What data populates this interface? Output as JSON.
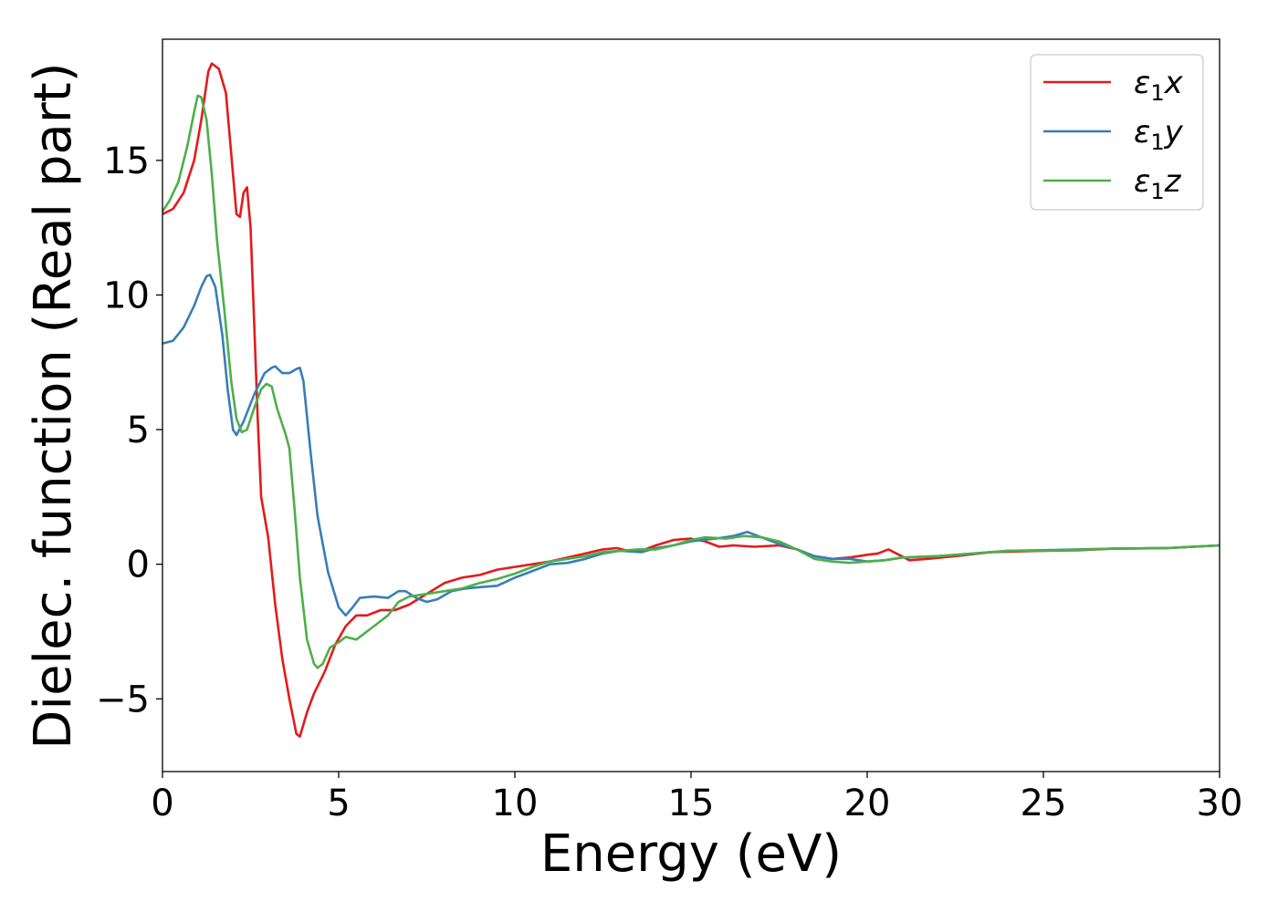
{
  "chart_data": {
    "type": "line",
    "title": "",
    "xlabel": "Energy (eV)",
    "ylabel": "Dielec. function (Real part)",
    "xlim": [
      0,
      30
    ],
    "ylim": [
      -7.7,
      19.5
    ],
    "xticks": [
      0,
      5,
      10,
      15,
      20,
      25,
      30
    ],
    "xtick_labels": [
      "0",
      "5",
      "10",
      "15",
      "20",
      "25",
      "30"
    ],
    "yticks": [
      -5,
      0,
      5,
      10,
      15
    ],
    "ytick_labels": [
      "−5",
      "0",
      "5",
      "10",
      "15"
    ],
    "grid": false,
    "legend_position": "top-right",
    "series": [
      {
        "name_base": "ε",
        "name_sub": "1",
        "name_suffix": "x",
        "color": "#e41a1c",
        "points": [
          [
            0,
            13.0
          ],
          [
            0.3,
            13.2
          ],
          [
            0.6,
            13.8
          ],
          [
            0.9,
            15.0
          ],
          [
            1.1,
            16.5
          ],
          [
            1.3,
            18.3
          ],
          [
            1.4,
            18.6
          ],
          [
            1.6,
            18.4
          ],
          [
            1.8,
            17.5
          ],
          [
            2.0,
            14.5
          ],
          [
            2.1,
            13.0
          ],
          [
            2.2,
            12.9
          ],
          [
            2.3,
            13.8
          ],
          [
            2.4,
            14.0
          ],
          [
            2.5,
            12.5
          ],
          [
            2.6,
            9.0
          ],
          [
            2.7,
            5.5
          ],
          [
            2.8,
            2.5
          ],
          [
            3.0,
            1.0
          ],
          [
            3.2,
            -1.5
          ],
          [
            3.4,
            -3.5
          ],
          [
            3.6,
            -5.0
          ],
          [
            3.8,
            -6.3
          ],
          [
            3.9,
            -6.4
          ],
          [
            4.1,
            -5.5
          ],
          [
            4.3,
            -4.8
          ],
          [
            4.6,
            -4.0
          ],
          [
            4.9,
            -3.0
          ],
          [
            5.2,
            -2.3
          ],
          [
            5.5,
            -1.9
          ],
          [
            5.8,
            -1.9
          ],
          [
            6.2,
            -1.7
          ],
          [
            6.6,
            -1.7
          ],
          [
            7.0,
            -1.5
          ],
          [
            7.5,
            -1.1
          ],
          [
            8.0,
            -0.7
          ],
          [
            8.5,
            -0.5
          ],
          [
            9.0,
            -0.4
          ],
          [
            9.5,
            -0.2
          ],
          [
            10.0,
            -0.1
          ],
          [
            11.0,
            0.1
          ],
          [
            12.0,
            0.4
          ],
          [
            12.5,
            0.55
          ],
          [
            12.9,
            0.6
          ],
          [
            13.2,
            0.5
          ],
          [
            13.6,
            0.5
          ],
          [
            14.0,
            0.7
          ],
          [
            14.5,
            0.9
          ],
          [
            15.0,
            0.95
          ],
          [
            15.4,
            0.85
          ],
          [
            15.8,
            0.65
          ],
          [
            16.2,
            0.7
          ],
          [
            16.8,
            0.65
          ],
          [
            17.5,
            0.7
          ],
          [
            18.0,
            0.55
          ],
          [
            18.5,
            0.3
          ],
          [
            19.0,
            0.2
          ],
          [
            19.5,
            0.25
          ],
          [
            20.0,
            0.35
          ],
          [
            20.3,
            0.4
          ],
          [
            20.6,
            0.55
          ],
          [
            20.9,
            0.35
          ],
          [
            21.2,
            0.15
          ],
          [
            21.7,
            0.2
          ],
          [
            22.5,
            0.3
          ],
          [
            23.5,
            0.45
          ],
          [
            25.0,
            0.5
          ],
          [
            26.0,
            0.52
          ],
          [
            27.0,
            0.58
          ],
          [
            28.5,
            0.6
          ],
          [
            30.0,
            0.7
          ]
        ]
      },
      {
        "name_base": "ε",
        "name_sub": "1",
        "name_suffix": "y",
        "color": "#377eb8",
        "points": [
          [
            0,
            8.2
          ],
          [
            0.3,
            8.3
          ],
          [
            0.6,
            8.8
          ],
          [
            0.9,
            9.6
          ],
          [
            1.1,
            10.3
          ],
          [
            1.25,
            10.7
          ],
          [
            1.35,
            10.75
          ],
          [
            1.5,
            10.3
          ],
          [
            1.7,
            8.5
          ],
          [
            1.85,
            6.5
          ],
          [
            2.0,
            5.0
          ],
          [
            2.1,
            4.8
          ],
          [
            2.3,
            5.3
          ],
          [
            2.6,
            6.3
          ],
          [
            2.9,
            7.1
          ],
          [
            3.1,
            7.3
          ],
          [
            3.2,
            7.35
          ],
          [
            3.4,
            7.1
          ],
          [
            3.6,
            7.1
          ],
          [
            3.8,
            7.25
          ],
          [
            3.9,
            7.3
          ],
          [
            4.0,
            6.8
          ],
          [
            4.2,
            4.2
          ],
          [
            4.4,
            1.8
          ],
          [
            4.7,
            -0.3
          ],
          [
            5.0,
            -1.6
          ],
          [
            5.2,
            -1.9
          ],
          [
            5.4,
            -1.6
          ],
          [
            5.6,
            -1.25
          ],
          [
            6.0,
            -1.2
          ],
          [
            6.4,
            -1.25
          ],
          [
            6.7,
            -1.0
          ],
          [
            6.9,
            -1.0
          ],
          [
            7.2,
            -1.25
          ],
          [
            7.5,
            -1.4
          ],
          [
            7.8,
            -1.3
          ],
          [
            8.2,
            -1.0
          ],
          [
            8.6,
            -0.9
          ],
          [
            9.0,
            -0.85
          ],
          [
            9.5,
            -0.8
          ],
          [
            10.0,
            -0.5
          ],
          [
            10.5,
            -0.25
          ],
          [
            11.0,
            0.0
          ],
          [
            11.5,
            0.05
          ],
          [
            12.0,
            0.2
          ],
          [
            12.5,
            0.4
          ],
          [
            13.0,
            0.5
          ],
          [
            13.6,
            0.45
          ],
          [
            14.0,
            0.6
          ],
          [
            14.5,
            0.7
          ],
          [
            15.0,
            0.85
          ],
          [
            15.3,
            0.9
          ],
          [
            15.7,
            0.95
          ],
          [
            16.2,
            1.05
          ],
          [
            16.6,
            1.2
          ],
          [
            17.0,
            1.0
          ],
          [
            17.5,
            0.75
          ],
          [
            18.0,
            0.55
          ],
          [
            18.5,
            0.3
          ],
          [
            19.0,
            0.2
          ],
          [
            19.5,
            0.2
          ],
          [
            20.0,
            0.1
          ],
          [
            20.5,
            0.15
          ],
          [
            21.0,
            0.25
          ],
          [
            22.0,
            0.3
          ],
          [
            23.0,
            0.4
          ],
          [
            24.0,
            0.5
          ],
          [
            25.0,
            0.52
          ],
          [
            27.0,
            0.58
          ],
          [
            28.5,
            0.6
          ],
          [
            30.0,
            0.7
          ]
        ]
      },
      {
        "name_base": "ε",
        "name_sub": "1",
        "name_suffix": "z",
        "color": "#4daf4a",
        "points": [
          [
            0,
            13.1
          ],
          [
            0.2,
            13.5
          ],
          [
            0.45,
            14.2
          ],
          [
            0.7,
            15.5
          ],
          [
            0.9,
            16.8
          ],
          [
            1.0,
            17.4
          ],
          [
            1.1,
            17.35
          ],
          [
            1.25,
            16.5
          ],
          [
            1.4,
            14.5
          ],
          [
            1.55,
            12.0
          ],
          [
            1.75,
            9.5
          ],
          [
            1.95,
            6.8
          ],
          [
            2.1,
            5.4
          ],
          [
            2.25,
            4.9
          ],
          [
            2.4,
            5.0
          ],
          [
            2.6,
            5.8
          ],
          [
            2.8,
            6.5
          ],
          [
            2.95,
            6.7
          ],
          [
            3.1,
            6.6
          ],
          [
            3.25,
            5.8
          ],
          [
            3.5,
            4.8
          ],
          [
            3.6,
            4.3
          ],
          [
            3.75,
            2.0
          ],
          [
            3.9,
            -0.5
          ],
          [
            4.1,
            -2.8
          ],
          [
            4.3,
            -3.7
          ],
          [
            4.4,
            -3.85
          ],
          [
            4.55,
            -3.7
          ],
          [
            4.75,
            -3.1
          ],
          [
            5.0,
            -2.9
          ],
          [
            5.2,
            -2.7
          ],
          [
            5.5,
            -2.8
          ],
          [
            5.8,
            -2.5
          ],
          [
            6.1,
            -2.2
          ],
          [
            6.4,
            -1.9
          ],
          [
            6.7,
            -1.4
          ],
          [
            7.0,
            -1.2
          ],
          [
            7.5,
            -1.1
          ],
          [
            8.0,
            -1.0
          ],
          [
            8.5,
            -0.9
          ],
          [
            9.0,
            -0.7
          ],
          [
            9.5,
            -0.55
          ],
          [
            10.0,
            -0.35
          ],
          [
            10.5,
            -0.1
          ],
          [
            11.0,
            0.1
          ],
          [
            11.5,
            0.2
          ],
          [
            12.0,
            0.3
          ],
          [
            12.5,
            0.45
          ],
          [
            13.0,
            0.5
          ],
          [
            13.5,
            0.55
          ],
          [
            14.0,
            0.55
          ],
          [
            14.5,
            0.7
          ],
          [
            15.0,
            0.9
          ],
          [
            15.4,
            1.0
          ],
          [
            16.0,
            0.95
          ],
          [
            16.5,
            1.05
          ],
          [
            17.0,
            1.0
          ],
          [
            17.5,
            0.85
          ],
          [
            18.0,
            0.55
          ],
          [
            18.5,
            0.2
          ],
          [
            19.0,
            0.1
          ],
          [
            19.5,
            0.05
          ],
          [
            20.0,
            0.1
          ],
          [
            20.5,
            0.15
          ],
          [
            21.0,
            0.25
          ],
          [
            22.0,
            0.3
          ],
          [
            23.0,
            0.4
          ],
          [
            24.0,
            0.5
          ],
          [
            25.0,
            0.5
          ],
          [
            27.0,
            0.58
          ],
          [
            28.5,
            0.6
          ],
          [
            30.0,
            0.7
          ]
        ]
      }
    ]
  }
}
